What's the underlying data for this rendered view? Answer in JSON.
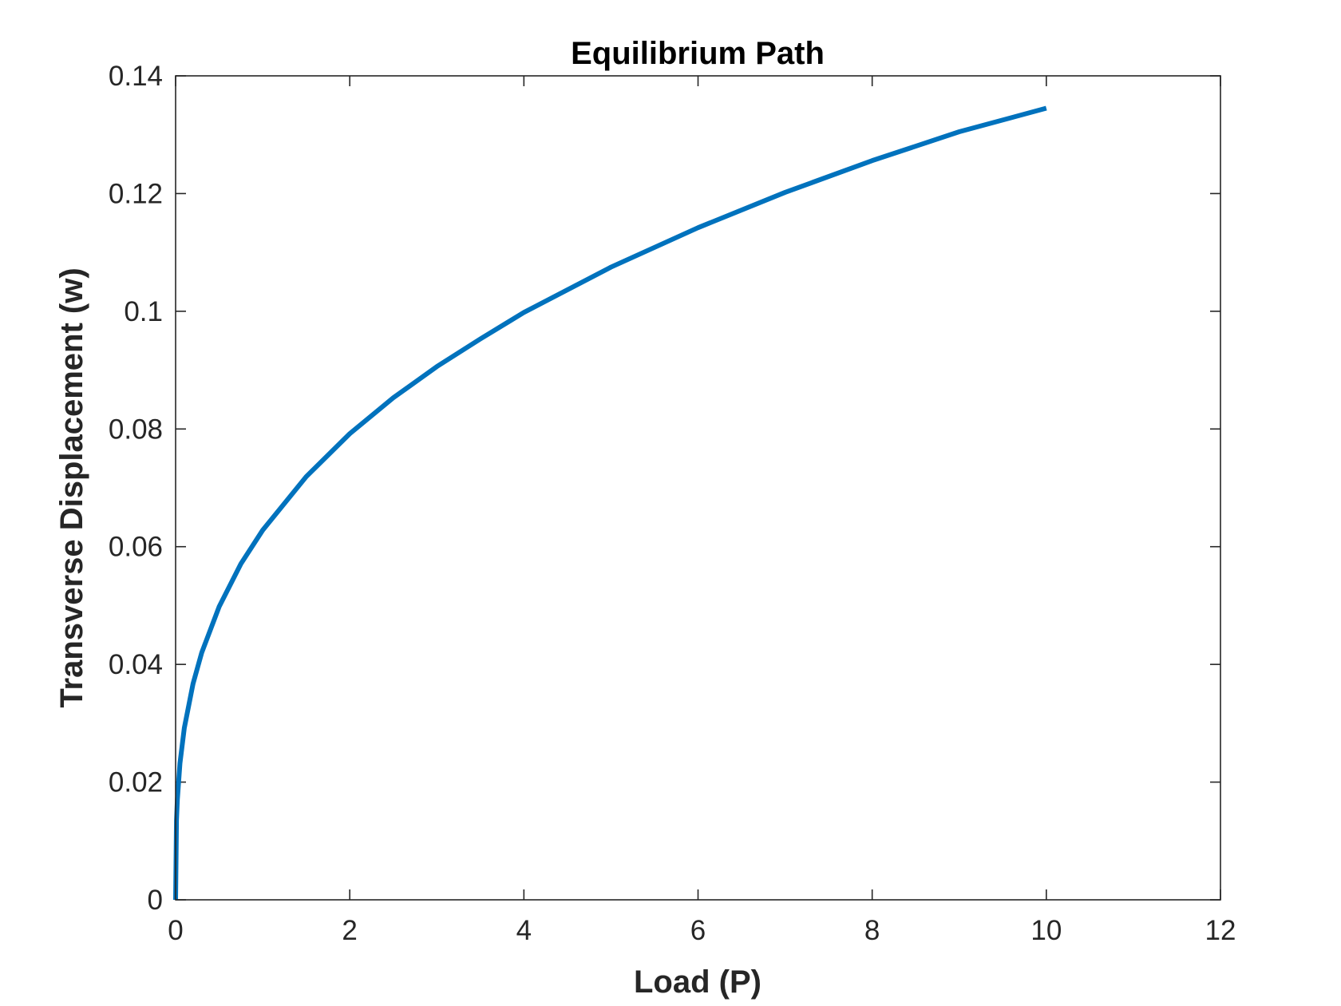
{
  "chart_data": {
    "type": "line",
    "title": "Equilibrium Path",
    "xlabel": "Load (P)",
    "ylabel": "Transverse Displacement (w)",
    "xlim": [
      0,
      12
    ],
    "ylim": [
      0,
      0.14
    ],
    "xticks": [
      0,
      2,
      4,
      6,
      8,
      10,
      12
    ],
    "yticks": [
      0,
      0.02,
      0.04,
      0.06,
      0.08,
      0.1,
      0.12,
      0.14
    ],
    "xtick_labels": [
      "0",
      "2",
      "4",
      "6",
      "8",
      "10",
      "12"
    ],
    "ytick_labels": [
      "0",
      "0.02",
      "0.04",
      "0.06",
      "0.08",
      "0.1",
      "0.12",
      "0.14"
    ],
    "grid": false,
    "series": [
      {
        "color": "#0072BD",
        "x": [
          0,
          0.01,
          0.02,
          0.05,
          0.1,
          0.2,
          0.3,
          0.5,
          0.75,
          1,
          1.5,
          2,
          2.5,
          3,
          3.5,
          4,
          5,
          6,
          7,
          8,
          9,
          10
        ],
        "y": [
          0,
          0.0135,
          0.017,
          0.0232,
          0.0292,
          0.0367,
          0.042,
          0.0498,
          0.0571,
          0.0628,
          0.0719,
          0.0792,
          0.0853,
          0.0906,
          0.0953,
          0.0998,
          0.1075,
          0.1142,
          0.1202,
          0.1256,
          0.1305,
          0.1345
        ]
      }
    ]
  }
}
